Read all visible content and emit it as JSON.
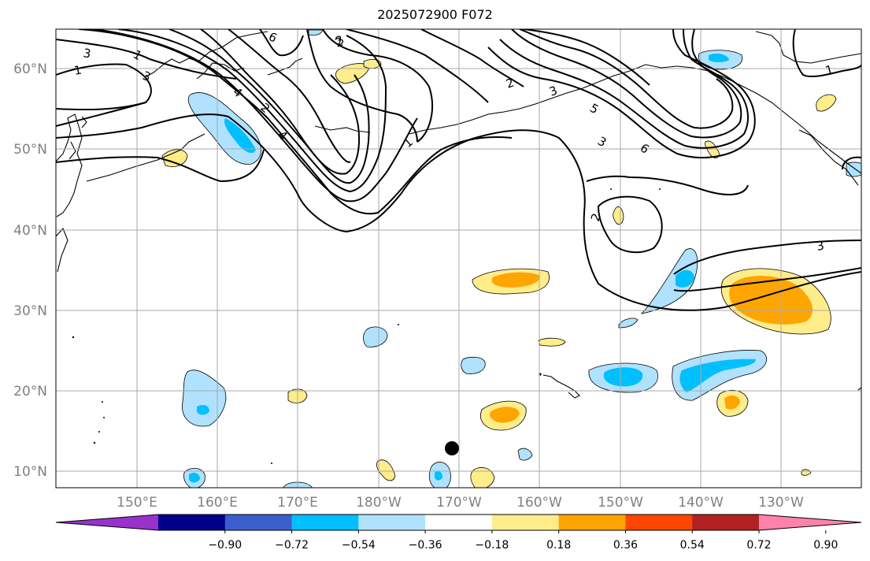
{
  "title": "2025072900 F072",
  "map": {
    "lat_labels": [
      "60°N",
      "50°N",
      "40°N",
      "30°N",
      "20°N",
      "10°N"
    ],
    "lon_labels": [
      "150°E",
      "160°E",
      "170°E",
      "180°W",
      "170°W",
      "160°W",
      "150°W",
      "140°W",
      "130°W"
    ],
    "contour_labels": [
      "6",
      "3",
      "1",
      "1",
      "3",
      "4",
      "4",
      "2",
      "2",
      "3",
      "1",
      "2",
      "3",
      "5",
      "2",
      "6",
      "1",
      "3",
      "3"
    ]
  },
  "colorbar": {
    "ticks": [
      "−0.90",
      "−0.72",
      "−0.54",
      "−0.36",
      "−0.18",
      "0.18",
      "0.36",
      "0.54",
      "0.72",
      "0.90"
    ],
    "colors": [
      "#9932cc",
      "#00008b",
      "#3a5fcd",
      "#00bfff",
      "#b0e2ff",
      "#ffffff",
      "#ffec8b",
      "#ffa500",
      "#ff4500",
      "#b22222",
      "#ff82ab"
    ]
  },
  "colors": {
    "neg_light": "#b0e2ff",
    "neg_mid": "#00bfff",
    "pos_light": "#ffec8b",
    "pos_mid": "#ffa500",
    "grid": "#a9a9a9",
    "marker": "#000000"
  }
}
